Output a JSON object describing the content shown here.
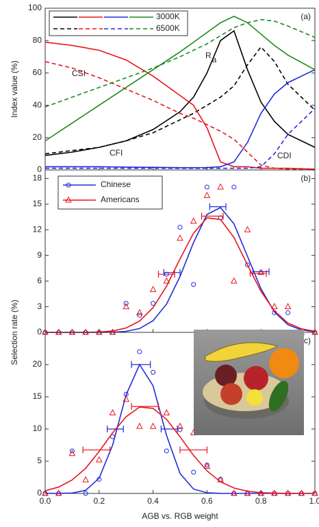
{
  "chart_data": [
    {
      "type": "line",
      "tag": "(a)",
      "ylabel": "Index value (%)",
      "xlim": [
        0,
        1
      ],
      "xticks": [
        0,
        0.2,
        0.4,
        0.6,
        0.8,
        1
      ],
      "ylim": [
        0,
        100
      ],
      "yticks": [
        0,
        20,
        40,
        60,
        80,
        100
      ],
      "legend": [
        {
          "label": "3000K",
          "dashed": false
        },
        {
          "label": "6500K",
          "dashed": true
        }
      ],
      "x": [
        0,
        0.1,
        0.2,
        0.3,
        0.4,
        0.5,
        0.55,
        0.6,
        0.65,
        0.7,
        0.75,
        0.8,
        0.85,
        0.9,
        1
      ],
      "series": [
        {
          "name": "CFI",
          "color": "#000000",
          "values": [
            [
              9,
              11,
              14,
              18,
              25,
              36,
              45,
              60,
              80,
              86,
              62,
              42,
              30,
              22,
              14
            ],
            [
              10,
              12,
              14,
              18,
              23,
              31,
              35,
              40,
              45,
              52,
              65,
              76,
              67,
              53,
              37
            ]
          ]
        },
        {
          "name": "CSI",
          "color": "#e8141b",
          "values": [
            [
              79,
              77,
              74,
              68,
              58,
              46,
              40,
              26,
              5,
              2,
              2,
              1,
              1,
              1,
              0.5
            ],
            [
              67,
              63,
              57,
              50,
              43,
              35,
              32,
              28,
              24,
              19,
              11,
              3,
              1,
              0.5,
              0
            ]
          ]
        },
        {
          "name": "CDI",
          "color": "#1f2bd8",
          "values": [
            [
              2,
              2,
              2,
              1.8,
              1.6,
              1.4,
              1.4,
              1.5,
              2,
              5,
              17,
              35,
              47,
              54,
              62
            ],
            [
              1,
              1,
              1,
              1,
              1,
              1,
              1,
              1,
              1,
              1,
              1,
              2,
              10,
              22,
              38
            ]
          ]
        },
        {
          "name": "R",
          "name_sub": "a",
          "color": "#1a8a1a",
          "values": [
            [
              18,
              29,
              40,
              51,
              62,
              73,
              79,
              85,
              91,
              95,
              91,
              84,
              77,
              71,
              62
            ],
            [
              39,
              45,
              51,
              57,
              63,
              70,
              74,
              78,
              83,
              88,
              91,
              93,
              92,
              89,
              82
            ]
          ]
        }
      ]
    },
    {
      "type": "scatter",
      "tag": "(b)",
      "ylabel": "Selection rate (%)",
      "legend": true,
      "xlim": [
        0,
        1
      ],
      "xticks": [
        0,
        0.2,
        0.4,
        0.6,
        0.8,
        1
      ],
      "ylim": [
        0,
        19
      ],
      "yticks": [
        0,
        3,
        6,
        9,
        12,
        15,
        18
      ],
      "x": [
        0,
        0.05,
        0.1,
        0.15,
        0.2,
        0.25,
        0.3,
        0.35,
        0.4,
        0.45,
        0.5,
        0.55,
        0.6,
        0.65,
        0.7,
        0.75,
        0.8,
        0.85,
        0.9,
        0.95,
        1
      ],
      "series": [
        {
          "name": "Chinese",
          "color": "#1f2bd8",
          "marker": "circle",
          "values": [
            0,
            0,
            0,
            0,
            0,
            0,
            3.4,
            2,
            3.4,
            6.8,
            12.3,
            5.6,
            17,
            13.4,
            17,
            7.9,
            7,
            2.3,
            2.3,
            0,
            0
          ],
          "fit": [
            0,
            0,
            0,
            0,
            0,
            0.02,
            0.12,
            0.45,
            1.36,
            3.31,
            6.54,
            10.5,
            13.8,
            14.6,
            12.7,
            8.9,
            5.1,
            2.38,
            0.9,
            0.28,
            0.07
          ],
          "errorbars": [
            {
              "x": 0.47,
              "y": 7,
              "xerr": 0.03
            },
            {
              "x": 0.64,
              "y": 14.7,
              "xerr": 0.03
            },
            {
              "x": 0.8,
              "y": 7.1,
              "xerr": 0.03
            }
          ]
        },
        {
          "name": "Americans",
          "color": "#e8141b",
          "marker": "triangle",
          "values": [
            0,
            0,
            0,
            0,
            0,
            0,
            3,
            2.3,
            5,
            6,
            11,
            13,
            16,
            17,
            6,
            12,
            7,
            3,
            3,
            0,
            0
          ],
          "fit": [
            0,
            0,
            0,
            0,
            0.05,
            0.17,
            0.51,
            1.32,
            2.89,
            5.4,
            8.6,
            11.6,
            13.4,
            13.2,
            11.1,
            7.9,
            4.8,
            2.5,
            1.1,
            0.42,
            0.13
          ],
          "errorbars": [
            {
              "x": 0.45,
              "y": 6.8,
              "xerr": 0.03
            },
            {
              "x": 0.62,
              "y": 13.6,
              "xerr": 0.04
            },
            {
              "x": 0.79,
              "y": 6.9,
              "xerr": 0.03
            }
          ]
        }
      ]
    },
    {
      "type": "scatter",
      "tag": "(c)",
      "xlabel": "AGB vs. RGB weight",
      "legend": false,
      "xlim": [
        0,
        1
      ],
      "xticks": [
        {
          "value": 0,
          "label": "0.0"
        },
        0.2,
        0.4,
        0.6,
        0.8,
        {
          "value": 1,
          "label": "1.0"
        }
      ],
      "ylim": [
        0,
        25
      ],
      "yticks": [
        0,
        5,
        10,
        15,
        20
      ],
      "x": [
        0,
        0.05,
        0.1,
        0.15,
        0.2,
        0.25,
        0.3,
        0.35,
        0.4,
        0.45,
        0.5,
        0.55,
        0.6,
        0.65,
        0.7,
        0.75,
        0.8,
        0.85,
        0.9,
        0.95,
        1
      ],
      "series": [
        {
          "name": "Chinese",
          "color": "#1f2bd8",
          "marker": "circle",
          "values": [
            0,
            0,
            6.6,
            0,
            2.2,
            8.8,
            15.4,
            22,
            18.8,
            6.6,
            9.9,
            3.3,
            4.4,
            2.2,
            0,
            0,
            0,
            0,
            0,
            0,
            0
          ],
          "fit": [
            0,
            0.01,
            0.06,
            0.48,
            2.36,
            7.5,
            15.3,
            20,
            16.7,
            9,
            3.1,
            0.68,
            0.1,
            0.01,
            0,
            0,
            0,
            0,
            0,
            0,
            0
          ],
          "errorbars": [
            {
              "x": 0.355,
              "y": 20,
              "xerr": 0.035
            },
            {
              "x": 0.26,
              "y": 10,
              "xerr": 0.03
            },
            {
              "x": 0.46,
              "y": 10,
              "xerr": 0.03
            }
          ]
        },
        {
          "name": "Americans",
          "color": "#e8141b",
          "marker": "triangle",
          "values": [
            0,
            0,
            6.2,
            2.1,
            5.2,
            12.5,
            14.6,
            10.4,
            10.4,
            12.5,
            10.4,
            9.4,
            4.2,
            2.1,
            0,
            0,
            0,
            0,
            0,
            0,
            0
          ],
          "fit": [
            0.41,
            0.99,
            2.1,
            3.9,
            6.5,
            9.4,
            11.9,
            13.4,
            13.2,
            11.5,
            8.8,
            5.9,
            3.5,
            1.8,
            0.84,
            0.34,
            0.12,
            0.04,
            0.01,
            0,
            0
          ],
          "errorbars": [
            {
              "x": 0.37,
              "y": 13.5,
              "xerr": 0.05
            },
            {
              "x": 0.19,
              "y": 6.75,
              "xerr": 0.05
            },
            {
              "x": 0.55,
              "y": 6.75,
              "xerr": 0.05
            }
          ]
        }
      ]
    }
  ]
}
